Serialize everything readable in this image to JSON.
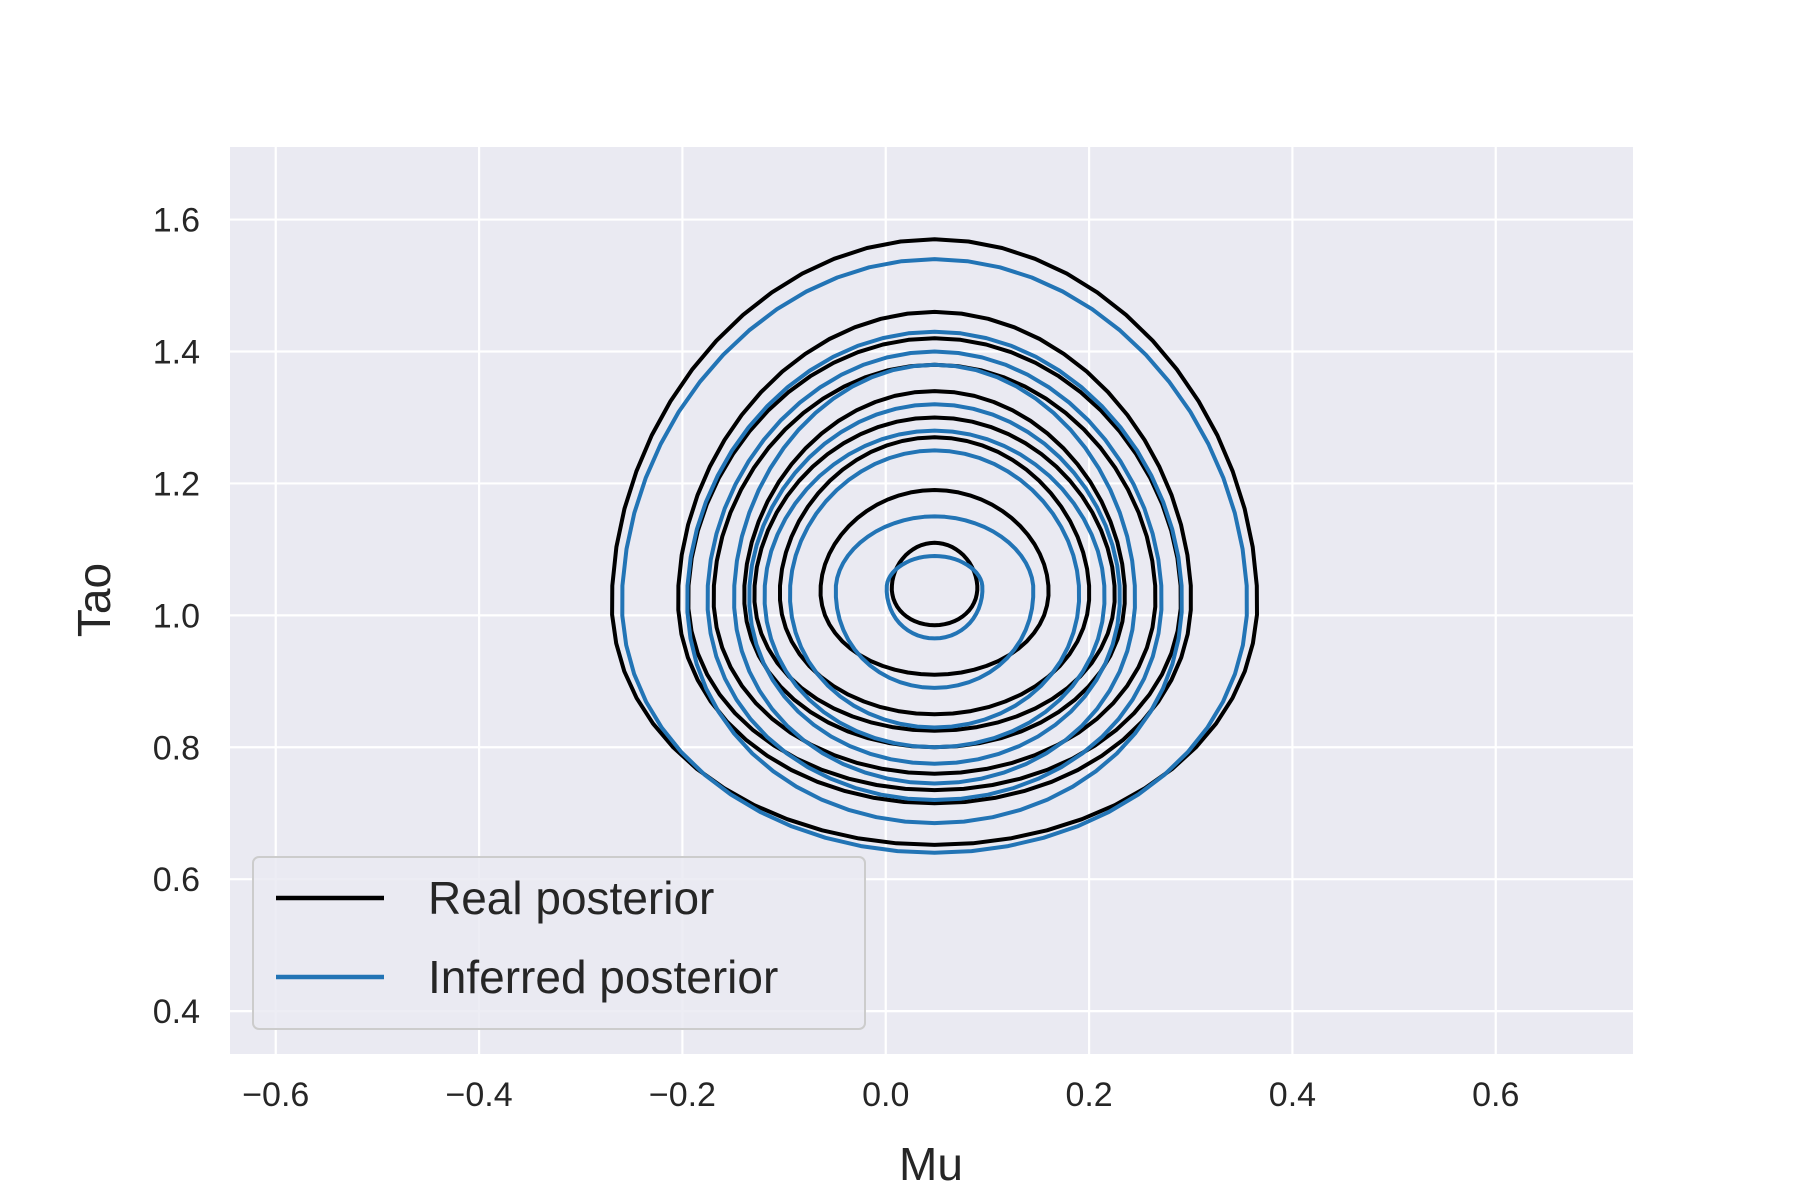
{
  "chart_data": {
    "type": "contour",
    "title": "",
    "xlabel": "Mu",
    "ylabel": "Tao",
    "xlim": [
      -0.645,
      0.735
    ],
    "ylim": [
      0.335,
      1.71
    ],
    "x_ticks": [
      -0.6,
      -0.4,
      -0.2,
      0.0,
      0.2,
      0.4,
      0.6
    ],
    "x_tick_labels": [
      "−0.6",
      "−0.4",
      "−0.2",
      "0.0",
      "0.2",
      "0.4",
      "0.6"
    ],
    "y_ticks": [
      0.4,
      0.6,
      0.8,
      1.0,
      1.2,
      1.4,
      1.6
    ],
    "y_tick_labels": [
      "0.4",
      "0.6",
      "0.8",
      "1.0",
      "1.2",
      "1.4",
      "1.6"
    ],
    "grid": true,
    "background_color": "#eaeaf2",
    "legend_position": "lower-left",
    "series": [
      {
        "name": "Real posterior",
        "color": "#000000",
        "center": [
          0.048,
          1.045
        ],
        "contours": [
          {
            "x_range": [
              -0.26,
              0.365
            ],
            "y_range": [
              0.652,
              1.57
            ]
          },
          {
            "x_range": [
              -0.185,
              0.3
            ],
            "y_range": [
              0.715,
              1.46
            ]
          },
          {
            "x_range": [
              -0.17,
              0.29
            ],
            "y_range": [
              0.735,
              1.42
            ]
          },
          {
            "x_range": [
              -0.145,
              0.265
            ],
            "y_range": [
              0.76,
              1.38
            ]
          },
          {
            "x_range": [
              -0.11,
              0.235
            ],
            "y_range": [
              0.8,
              1.34
            ]
          },
          {
            "x_range": [
              -0.095,
              0.225
            ],
            "y_range": [
              0.825,
              1.3
            ]
          },
          {
            "x_range": [
              -0.075,
              0.2
            ],
            "y_range": [
              0.85,
              1.27
            ]
          },
          {
            "x_range": [
              -0.04,
              0.16
            ],
            "y_range": [
              0.91,
              1.19
            ]
          },
          {
            "x_range": [
              0.008,
              0.09
            ],
            "y_range": [
              0.985,
              1.11
            ]
          }
        ]
      },
      {
        "name": "Inferred posterior",
        "color": "#2274b5",
        "center": [
          0.048,
          1.045
        ],
        "contours": [
          {
            "x_range": [
              -0.25,
              0.355
            ],
            "y_range": [
              0.64,
              1.54
            ]
          },
          {
            "x_range": [
              -0.195,
              0.285
            ],
            "y_range": [
              0.685,
              1.43
            ]
          },
          {
            "x_range": [
              -0.175,
              0.27
            ],
            "y_range": [
              0.72,
              1.4
            ]
          },
          {
            "x_range": [
              -0.145,
              0.245
            ],
            "y_range": [
              0.745,
              1.38
            ]
          },
          {
            "x_range": [
              -0.12,
              0.23
            ],
            "y_range": [
              0.775,
              1.32
            ]
          },
          {
            "x_range": [
              -0.105,
              0.215
            ],
            "y_range": [
              0.8,
              1.28
            ]
          },
          {
            "x_range": [
              -0.085,
              0.19
            ],
            "y_range": [
              0.83,
              1.25
            ]
          },
          {
            "x_range": [
              -0.045,
              0.145
            ],
            "y_range": [
              0.89,
              1.15
            ]
          },
          {
            "x_range": [
              0.012,
              0.095
            ],
            "y_range": [
              0.965,
              1.09
            ]
          }
        ]
      }
    ]
  }
}
